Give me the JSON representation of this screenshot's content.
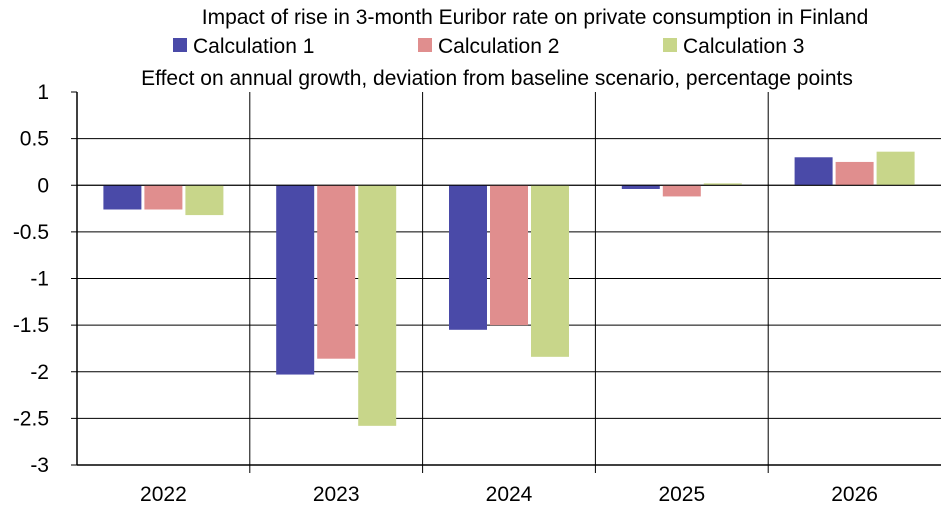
{
  "chart_data": {
    "type": "bar",
    "title": "Impact of rise in 3-month Euribor rate on private consumption in Finland",
    "subtitle": "Effect on annual growth, deviation from baseline scenario, percentage points",
    "categories": [
      "2022",
      "2023",
      "2024",
      "2025",
      "2026"
    ],
    "series": [
      {
        "name": "Calculation 1",
        "color": "#4a4aa8",
        "values": [
          -0.26,
          -2.03,
          -1.55,
          -0.04,
          0.3
        ]
      },
      {
        "name": "Calculation 2",
        "color": "#e08e8e",
        "values": [
          -0.26,
          -1.86,
          -1.5,
          -0.12,
          0.25
        ]
      },
      {
        "name": "Calculation 3",
        "color": "#c8d68a",
        "values": [
          -0.32,
          -2.58,
          -1.84,
          0.02,
          0.36
        ]
      }
    ],
    "ylim": [
      -3,
      1
    ],
    "yticks": [
      "1",
      "0.5",
      "0",
      "-0.5",
      "-1",
      "-1.5",
      "-2",
      "-2.5",
      "-3"
    ],
    "grid": true,
    "legend_position": "top"
  }
}
